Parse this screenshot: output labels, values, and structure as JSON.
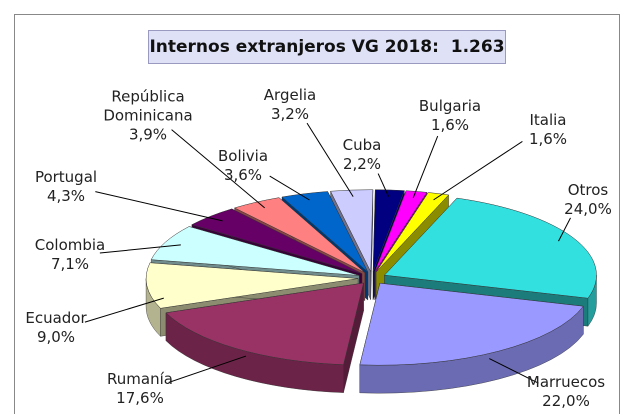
{
  "chart_data": {
    "type": "pie3d",
    "title": "Internos extranjeros VG 2018:  1.263",
    "categories": [
      "Otros",
      "Marruecos",
      "Rumanía",
      "Ecuador",
      "Colombia",
      "Portugal",
      "República Dominicana",
      "Bolivia",
      "Argelia",
      "Cuba",
      "Bulgaria",
      "Italia"
    ],
    "values": [
      24.0,
      22.0,
      17.6,
      9.0,
      7.1,
      4.3,
      3.9,
      3.6,
      3.2,
      2.2,
      1.6,
      1.6
    ],
    "value_labels": [
      "24,0%",
      "22,0%",
      "17,6%",
      "9,0%",
      "7,1%",
      "4,3%",
      "3,9%",
      "3,6%",
      "3,2%",
      "2,2%",
      "1,6%",
      "1,6%"
    ],
    "colors": [
      "#33e0e0",
      "#9999ff",
      "#993366",
      "#ffffcc",
      "#ccffff",
      "#660066",
      "#ff8080",
      "#0066cc",
      "#ccccff",
      "#000080",
      "#ff00ff",
      "#ffff00"
    ]
  }
}
